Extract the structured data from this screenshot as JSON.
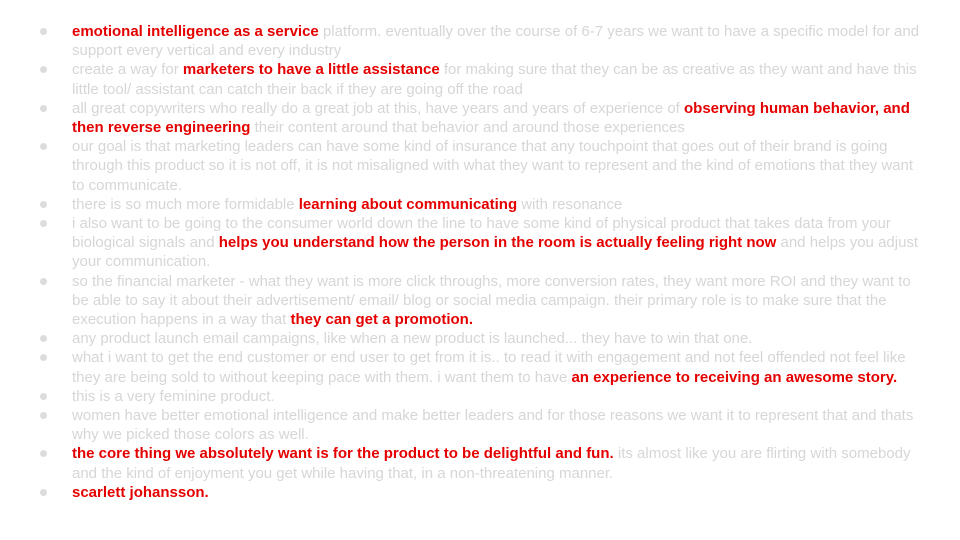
{
  "colors": {
    "highlight": "#e50000",
    "body_text": "#d6d6d6",
    "bullet": "#dcdcdc"
  },
  "bullets": [
    {
      "parts": [
        {
          "t": "emotional intelligence as a service",
          "hl": true
        },
        {
          "t": " platform. eventually over the course of 6-7 years we want to have a specific model for and support every vertical and every industry",
          "hl": false
        }
      ]
    },
    {
      "parts": [
        {
          "t": "create a way for ",
          "hl": false
        },
        {
          "t": "marketers to have a little assistance",
          "hl": true
        },
        {
          "t": " for making sure that they can be as creative as they want and have this little tool/ assistant can catch their back if they are going off the road",
          "hl": false
        }
      ]
    },
    {
      "parts": [
        {
          "t": "all great copywriters who really do a great job at this, have years and years of experience of ",
          "hl": false
        },
        {
          "t": "observing human behavior, and then reverse engineering",
          "hl": true
        },
        {
          "t": " their content around that behavior and around those experiences",
          "hl": false
        }
      ]
    },
    {
      "parts": [
        {
          "t": "our goal is that marketing leaders can have some kind of insurance that any touchpoint that goes out of their brand is going through this product so it is not off, it is not misaligned with what they want to represent and the kind of emotions that they want to communicate.",
          "hl": false
        }
      ]
    },
    {
      "parts": [
        {
          "t": "there is so much more formidable ",
          "hl": false
        },
        {
          "t": "learning about communicating",
          "hl": true
        },
        {
          "t": " with resonance",
          "hl": false
        }
      ]
    },
    {
      "parts": [
        {
          "t": "i also want to be going to the consumer world down the line to have some kind of physical product that takes data from your biological signals and ",
          "hl": false
        },
        {
          "t": "helps you understand how the person in the room is actually feeling right now",
          "hl": true
        },
        {
          "t": " and helps you adjust your communication.",
          "hl": false
        }
      ]
    },
    {
      "parts": [
        {
          "t": "so the financial marketer - what they want is more click throughs, more conversion rates, they want more ROI and they want to be able to say it about their advertisement/ email/ blog or social media campaign. their primary role is to make sure that the execution happens in a way that ",
          "hl": false
        },
        {
          "t": "they can get a promotion.",
          "hl": true
        }
      ]
    },
    {
      "parts": [
        {
          "t": "any product launch email campaigns, like when a new product is launched... they have to win that one.",
          "hl": false
        }
      ]
    },
    {
      "parts": [
        {
          "t": "what i want to get the end customer or end user to get from it is.. to read it with engagement and not feel offended not feel like they are being sold to without keeping pace with them. i want them to have ",
          "hl": false
        },
        {
          "t": "an experience to receiving an awesome story.",
          "hl": true
        }
      ]
    },
    {
      "parts": [
        {
          "t": "this is a very feminine product.",
          "hl": false
        }
      ]
    },
    {
      "parts": [
        {
          "t": "women have better emotional intelligence and make better leaders and for those reasons we want it to represent that and thats why we picked those colors as well.",
          "hl": false
        }
      ]
    },
    {
      "parts": [
        {
          "t": "the core thing we absolutely want is for the product to be delightful and fun.",
          "hl": true
        },
        {
          "t": " its almost like you are flirting with somebody and the kind of enjoyment you get while having that, in a non-threatening manner.",
          "hl": false
        }
      ]
    },
    {
      "parts": [
        {
          "t": "scarlett johansson.",
          "hl": true
        }
      ]
    }
  ]
}
